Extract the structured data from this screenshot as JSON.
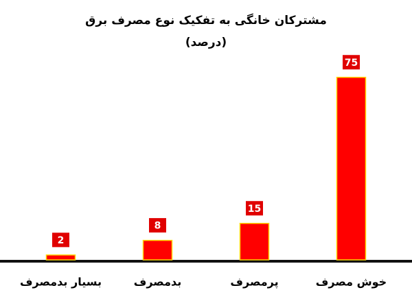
{
  "chart_data": {
    "type": "bar",
    "title": "مشترکان خانگی به تفکیک نوع مصرف برق",
    "subtitle": "(درصد)",
    "categories": [
      "بسیار بدمصرف",
      "بدمصرف",
      "پرمصرف",
      "خوش مصرف"
    ],
    "values": [
      2,
      8,
      15,
      75
    ],
    "color": "#ff0000"
  }
}
